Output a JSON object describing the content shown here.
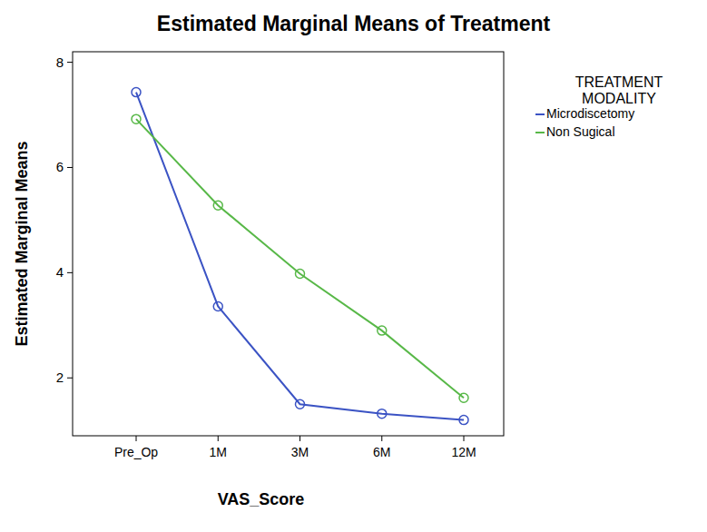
{
  "chart_data": {
    "type": "line",
    "title": "Estimated Marginal Means of Treatment",
    "x_label": "VAS_Score",
    "y_label": "Estimated Marginal Means",
    "categories": [
      "Pre_Op",
      "1M",
      "3M",
      "6M",
      "12M"
    ],
    "series": [
      {
        "name": "Microdiscetomy",
        "color": "#3b53c4",
        "marker": "circle",
        "values": [
          7.43,
          3.36,
          1.5,
          1.32,
          1.2
        ]
      },
      {
        "name": "Non Sugical",
        "color": "#58b848",
        "marker": "circle",
        "values": [
          6.92,
          5.28,
          3.98,
          2.9,
          1.62
        ]
      }
    ],
    "ylim": [
      0.9,
      8.2
    ],
    "yticks": [
      2,
      4,
      6,
      8
    ],
    "grid": false,
    "legend": "right",
    "legend_title": "TREATMENT MODALITY"
  }
}
